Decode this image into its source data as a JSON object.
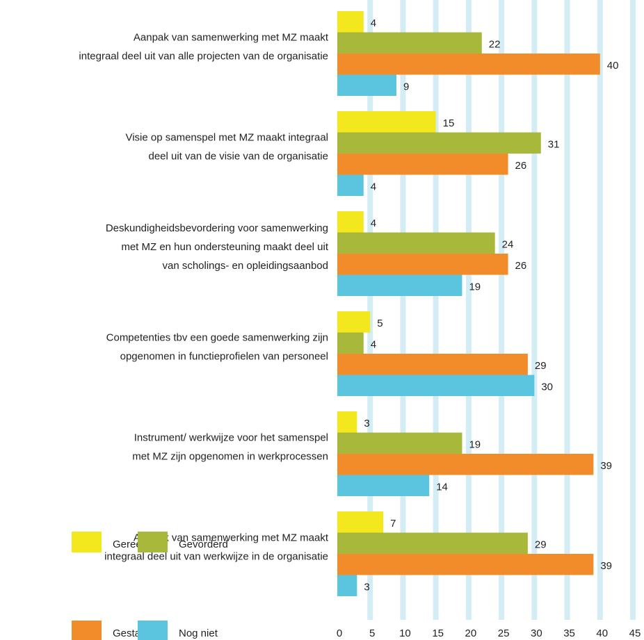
{
  "chart_data": {
    "type": "barh",
    "categories": [
      [
        "Aanpak van samenwerking met MZ maakt",
        "integraal deel uit van alle projecten van de organisatie"
      ],
      [
        "Visie op samenspel met MZ maakt integraal",
        "deel uit van de visie van de organisatie"
      ],
      [
        "Deskundigheidsbevordering voor samenwerking",
        "met MZ en hun ondersteuning maakt deel uit",
        "van scholings- en opleidingsaanbod"
      ],
      [
        "Competenties tbv een goede samenwerking zijn",
        "opgenomen in functieprofielen van personeel"
      ],
      [
        "Instrument/ werkwijze voor het samenspel",
        "met MZ zijn opgenomen in werkprocessen"
      ],
      [
        "Aanpak van samenwerking met MZ maakt",
        "integraal deel uit van werkwijze in de organisatie"
      ]
    ],
    "series": [
      {
        "name": "Gereed",
        "color": "#f2e81d",
        "values": [
          4,
          15,
          4,
          5,
          3,
          7
        ]
      },
      {
        "name": "Gevorderd",
        "color": "#a8b83a",
        "values": [
          22,
          31,
          24,
          4,
          19,
          29
        ]
      },
      {
        "name": "Gestart",
        "color": "#f28c2a",
        "values": [
          40,
          26,
          26,
          29,
          39,
          39
        ]
      },
      {
        "name": "Nog niet",
        "color": "#5bc5e0",
        "values": [
          9,
          4,
          19,
          30,
          14,
          3
        ]
      }
    ],
    "xlim": [
      0,
      45
    ],
    "xticks": [
      0,
      5,
      10,
      15,
      20,
      25,
      30,
      35,
      40,
      45
    ],
    "grid": true,
    "grid_color": "#d4ecf4",
    "legend": "lower left"
  }
}
